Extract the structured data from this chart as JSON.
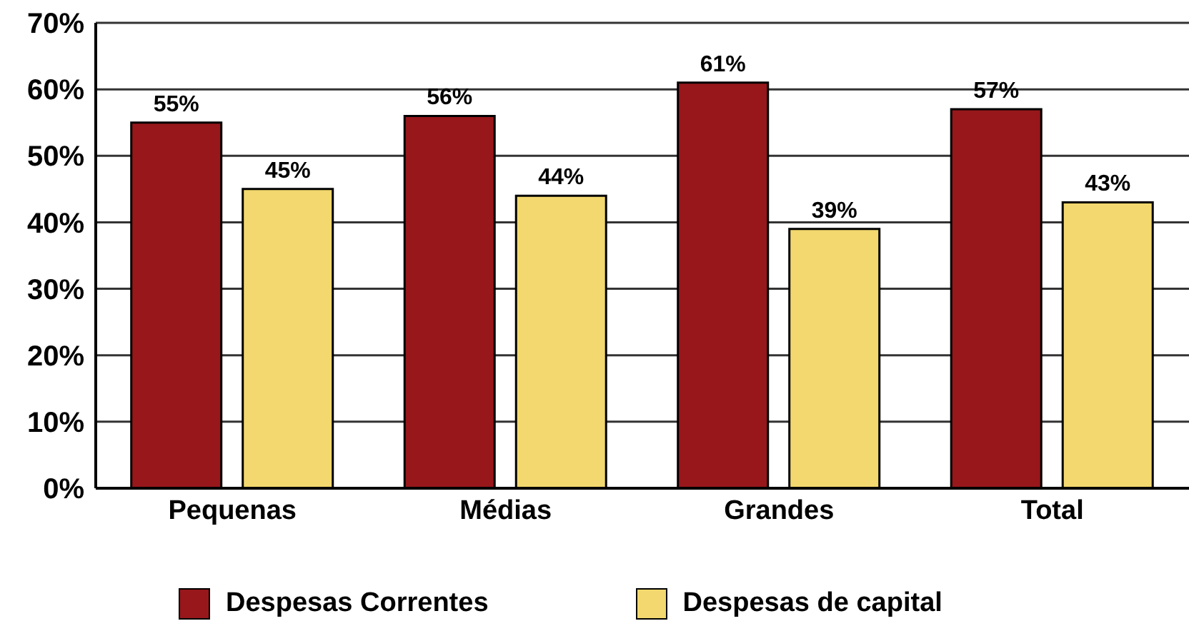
{
  "chart_data": {
    "type": "bar",
    "categories": [
      "Pequenas",
      "Médias",
      "Grandes",
      "Total"
    ],
    "series": [
      {
        "name": "Despesas Correntes",
        "color": "#97171b",
        "values": [
          55,
          56,
          61,
          57
        ],
        "value_labels": [
          "55%",
          "56%",
          "61%",
          "57%"
        ]
      },
      {
        "name": "Despesas de capital",
        "color": "#f2d86e",
        "values": [
          45,
          44,
          39,
          43
        ],
        "value_labels": [
          "45%",
          "44%",
          "39%",
          "43%"
        ]
      }
    ],
    "ylim": [
      0,
      70
    ],
    "yticks": [
      {
        "value": 0,
        "label": "0%"
      },
      {
        "value": 10,
        "label": "10%"
      },
      {
        "value": 20,
        "label": "20%"
      },
      {
        "value": 30,
        "label": "30%"
      },
      {
        "value": 40,
        "label": "40%"
      },
      {
        "value": 50,
        "label": "50%"
      },
      {
        "value": 60,
        "label": "60%"
      },
      {
        "value": 70,
        "label": "70%"
      }
    ],
    "grid": "y",
    "legend": "bottom"
  }
}
